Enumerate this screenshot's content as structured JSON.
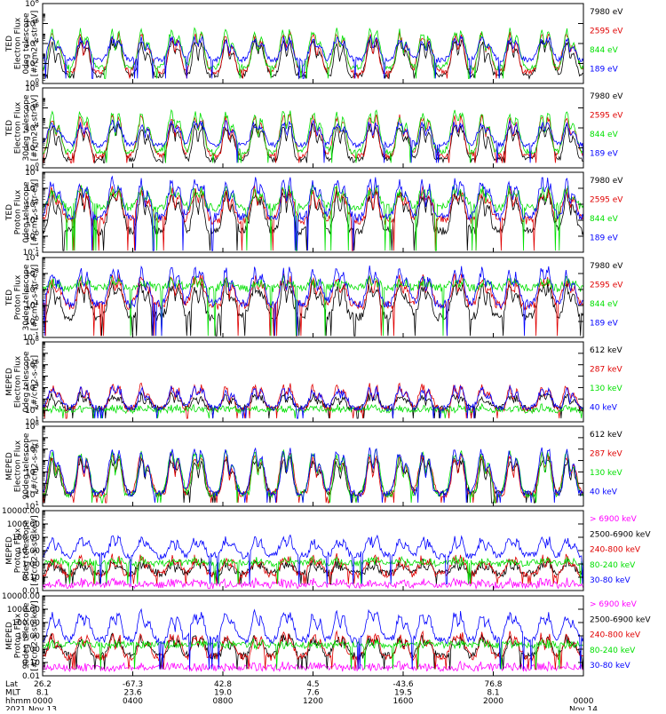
{
  "colors": {
    "black": "#000000",
    "red": "#e00000",
    "green": "#00e000",
    "blue": "#0000ff",
    "magenta": "#ff00ff",
    "axis": "#000000"
  },
  "chart_data": [
    {
      "type": "line",
      "ylabel_lines": [
        "TED",
        "Electron Flux",
        "0deg telescope",
        "[#/cm2-s-str-eV]"
      ],
      "y_scale": "log",
      "ylim": [
        1,
        100000000
      ],
      "ytick_exponents": [
        0,
        2,
        4,
        6,
        8
      ],
      "ytick_style": "power",
      "noise_floor_exp": 0.5,
      "legend": [
        {
          "label": "7980 eV",
          "color": "black"
        },
        {
          "label": "2595 eV",
          "color": "red"
        },
        {
          "label": "844 eV",
          "color": "green"
        },
        {
          "label": "189 eV",
          "color": "blue"
        }
      ],
      "series": [
        {
          "name": "7980 eV",
          "color": "black",
          "base_exp": 0.8,
          "peak_exp": 4.5
        },
        {
          "name": "2595 eV",
          "color": "red",
          "base_exp": 1.2,
          "peak_exp": 5.2
        },
        {
          "name": "844 eV",
          "color": "green",
          "base_exp": 1.6,
          "peak_exp": 5.6
        },
        {
          "name": "189 eV",
          "color": "blue",
          "base_exp": 2.4,
          "peak_exp": 4.8
        }
      ]
    },
    {
      "type": "line",
      "ylabel_lines": [
        "TED",
        "Electron Flux",
        "30deg telescope",
        "[#/cm2-s-str-eV]"
      ],
      "y_scale": "log",
      "ylim": [
        1,
        100000000
      ],
      "ytick_exponents": [
        0,
        2,
        4,
        6,
        8
      ],
      "ytick_style": "power",
      "noise_floor_exp": 0.5,
      "legend": [
        {
          "label": "7980 eV",
          "color": "black"
        },
        {
          "label": "2595 eV",
          "color": "red"
        },
        {
          "label": "844 eV",
          "color": "green"
        },
        {
          "label": "189 eV",
          "color": "blue"
        }
      ],
      "series": [
        {
          "name": "7980 eV",
          "color": "black",
          "base_exp": 0.8,
          "peak_exp": 4.5
        },
        {
          "name": "2595 eV",
          "color": "red",
          "base_exp": 1.2,
          "peak_exp": 5.4
        },
        {
          "name": "844 eV",
          "color": "green",
          "base_exp": 1.6,
          "peak_exp": 5.8
        },
        {
          "name": "189 eV",
          "color": "blue",
          "base_exp": 2.3,
          "peak_exp": 4.8
        }
      ]
    },
    {
      "type": "line",
      "ylabel_lines": [
        "TED",
        "Proton Flux",
        "0deg telescope",
        "[#/cm2-s-str-eV]"
      ],
      "y_scale": "log",
      "ylim": [
        0.1,
        10000
      ],
      "ytick_exponents": [
        -1,
        0,
        1,
        2,
        3,
        4
      ],
      "ytick_style": "power",
      "noise_floor_exp": -0.9,
      "legend": [
        {
          "label": "7980 eV",
          "color": "black"
        },
        {
          "label": "2595 eV",
          "color": "red"
        },
        {
          "label": "844 eV",
          "color": "green"
        },
        {
          "label": "189 eV",
          "color": "blue"
        }
      ],
      "series": [
        {
          "name": "7980 eV",
          "color": "black",
          "base_exp": 0.3,
          "peak_exp": 3.0
        },
        {
          "name": "2595 eV",
          "color": "red",
          "base_exp": 1.0,
          "peak_exp": 3.2
        },
        {
          "name": "844 eV",
          "color": "green",
          "base_exp": 1.8,
          "peak_exp": 3.3
        },
        {
          "name": "189 eV",
          "color": "blue",
          "base_exp": 1.2,
          "peak_exp": 3.8
        }
      ]
    },
    {
      "type": "line",
      "ylabel_lines": [
        "TED",
        "Proton Flux",
        "30deg telescope",
        "[#/cm2-s-str-eV]"
      ],
      "y_scale": "log",
      "ylim": [
        0.1,
        10000
      ],
      "ytick_exponents": [
        -1,
        0,
        1,
        2,
        3,
        4
      ],
      "ytick_style": "power",
      "noise_floor_exp": -0.9,
      "legend": [
        {
          "label": "7980 eV",
          "color": "black"
        },
        {
          "label": "2595 eV",
          "color": "red"
        },
        {
          "label": "844 eV",
          "color": "green"
        },
        {
          "label": "189 eV",
          "color": "blue"
        }
      ],
      "series": [
        {
          "name": "7980 eV",
          "color": "black",
          "base_exp": 0.3,
          "peak_exp": 2.6
        },
        {
          "name": "2595 eV",
          "color": "red",
          "base_exp": 1.0,
          "peak_exp": 3.0
        },
        {
          "name": "844 eV",
          "color": "green",
          "base_exp": 2.1,
          "peak_exp": 2.9
        },
        {
          "name": "189 eV",
          "color": "blue",
          "base_exp": 1.1,
          "peak_exp": 3.5
        }
      ]
    },
    {
      "type": "line",
      "ylabel_lines": [
        "MEPED",
        "Electron Flux",
        "0deg telescope",
        "[#/cm2-s-str]"
      ],
      "y_scale": "log",
      "ylim": [
        10,
        100000000
      ],
      "ytick_exponents": [
        1,
        2,
        3,
        4,
        5,
        6,
        7,
        8
      ],
      "ytick_labels_exponents": [
        1,
        2,
        4,
        6,
        8
      ],
      "ytick_style": "power",
      "noise_floor_exp": 1.3,
      "legend": [
        {
          "label": "612 keV",
          "color": "black"
        },
        {
          "label": "287 keV",
          "color": "red"
        },
        {
          "label": "130 keV",
          "color": "green"
        },
        {
          "label": "40 keV",
          "color": "blue"
        }
      ],
      "series": [
        {
          "name": "612 keV",
          "color": "black",
          "base_exp": 2.2,
          "peak_exp": 3.6
        },
        {
          "name": "287 keV",
          "color": "red",
          "base_exp": 2.1,
          "peak_exp": 4.4
        },
        {
          "name": "130 keV",
          "color": "green",
          "base_exp": 2.0,
          "peak_exp": 2.6
        },
        {
          "name": "40 keV",
          "color": "blue",
          "base_exp": 2.2,
          "peak_exp": 4.2
        }
      ]
    },
    {
      "type": "line",
      "ylabel_lines": [
        "MEPED",
        "Electron Flux",
        "90deg telescope",
        "[#/cm2-s-str]"
      ],
      "y_scale": "log",
      "ylim": [
        10,
        100000000
      ],
      "ytick_exponents": [
        1,
        2,
        3,
        4,
        5,
        6,
        7,
        8
      ],
      "ytick_labels_exponents": [
        1,
        2,
        4,
        6,
        8
      ],
      "ytick_style": "power",
      "noise_floor_exp": 1.3,
      "legend": [
        {
          "label": "612 keV",
          "color": "black"
        },
        {
          "label": "287 keV",
          "color": "red"
        },
        {
          "label": "130 keV",
          "color": "green"
        },
        {
          "label": "40 keV",
          "color": "blue"
        }
      ],
      "series": [
        {
          "name": "612 keV",
          "color": "black",
          "base_exp": 2.1,
          "peak_exp": 5.4
        },
        {
          "name": "287 keV",
          "color": "red",
          "base_exp": 2.0,
          "peak_exp": 5.8
        },
        {
          "name": "130 keV",
          "color": "green",
          "base_exp": 2.0,
          "peak_exp": 6.0
        },
        {
          "name": "40 keV",
          "color": "blue",
          "base_exp": 2.1,
          "peak_exp": 6.2
        }
      ]
    },
    {
      "type": "line",
      "ylabel_lines": [
        "MEPED",
        "Proton Flux",
        "0deg telescope",
        "[#/cm2-s-str-keV]"
      ],
      "y_scale": "log",
      "ylim": [
        0.01,
        10000
      ],
      "ytick_exponents": [
        -2,
        -1,
        0,
        1,
        2,
        3,
        4
      ],
      "ytick_style": "decimal",
      "ytick_labels": [
        "0.01",
        "0.10",
        "1.00",
        "10.00",
        "100.00",
        "1000.00",
        "10000.00"
      ],
      "noise_floor_exp": -1.5,
      "legend": [
        {
          "label": "> 6900 keV",
          "color": "magenta"
        },
        {
          "label": "2500-6900 keV",
          "color": "black"
        },
        {
          "label": "240-800 keV",
          "color": "red"
        },
        {
          "label": "80-240 keV",
          "color": "green"
        },
        {
          "label": "30-80 keV",
          "color": "blue"
        }
      ],
      "series": [
        {
          "name": "> 6900 keV",
          "color": "magenta",
          "base_exp": -1.6,
          "peak_exp": -1.0
        },
        {
          "name": "2500-6900 keV",
          "color": "black",
          "base_exp": -0.7,
          "peak_exp": 0.4
        },
        {
          "name": "240-800 keV",
          "color": "red",
          "base_exp": -0.8,
          "peak_exp": 0.8
        },
        {
          "name": "80-240 keV",
          "color": "green",
          "base_exp": 0.05,
          "peak_exp": 0.6
        },
        {
          "name": "30-80 keV",
          "color": "blue",
          "base_exp": 0.6,
          "peak_exp": 2.2
        }
      ]
    },
    {
      "type": "line",
      "ylabel_lines": [
        "MEPED",
        "Proton Flux",
        "90deg telescope",
        "[#/cm2-s-str-keV]"
      ],
      "y_scale": "log",
      "ylim": [
        0.01,
        10000
      ],
      "ytick_exponents": [
        -2,
        -1,
        0,
        1,
        2,
        3,
        4
      ],
      "ytick_style": "decimal",
      "ytick_labels": [
        "0.01",
        "0.10",
        "1.00",
        "10.00",
        "100.00",
        "1000.00",
        "10000.00"
      ],
      "noise_floor_exp": -1.5,
      "legend": [
        {
          "label": "> 6900 keV",
          "color": "magenta"
        },
        {
          "label": "2500-6900 keV",
          "color": "black"
        },
        {
          "label": "240-800 keV",
          "color": "red"
        },
        {
          "label": "80-240 keV",
          "color": "green"
        },
        {
          "label": "30-80 keV",
          "color": "blue"
        }
      ],
      "series": [
        {
          "name": "> 6900 keV",
          "color": "magenta",
          "base_exp": -1.4,
          "peak_exp": -0.9
        },
        {
          "name": "2500-6900 keV",
          "color": "black",
          "base_exp": -0.5,
          "peak_exp": 1.2
        },
        {
          "name": "240-800 keV",
          "color": "red",
          "base_exp": -0.6,
          "peak_exp": 1.4
        },
        {
          "name": "80-240 keV",
          "color": "green",
          "base_exp": 0.3,
          "peak_exp": 0.8
        },
        {
          "name": "30-80 keV",
          "color": "blue",
          "base_exp": 0.7,
          "peak_exp": 3.0
        }
      ]
    }
  ],
  "x_axis": {
    "row_labels": [
      "Lat",
      "MLT",
      "hhmm",
      "2021"
    ],
    "ticks": [
      {
        "lat": "26.2",
        "mlt": "8.1",
        "time": "0000",
        "date": "Nov 13"
      },
      {
        "lat": "-67.3",
        "mlt": "23.6",
        "time": "0400",
        "date": ""
      },
      {
        "lat": "42.8",
        "mlt": "19.0",
        "time": "0800",
        "date": ""
      },
      {
        "lat": "4.5",
        "mlt": "7.6",
        "time": "1200",
        "date": ""
      },
      {
        "lat": "-43.6",
        "mlt": "19.5",
        "time": "1600",
        "date": ""
      },
      {
        "lat": "76.8",
        "mlt": "8.1",
        "time": "2000",
        "date": ""
      },
      {
        "lat": "",
        "mlt": "",
        "time": "0000",
        "date": "Nov 14"
      }
    ]
  },
  "orbit": {
    "passes": 19
  }
}
